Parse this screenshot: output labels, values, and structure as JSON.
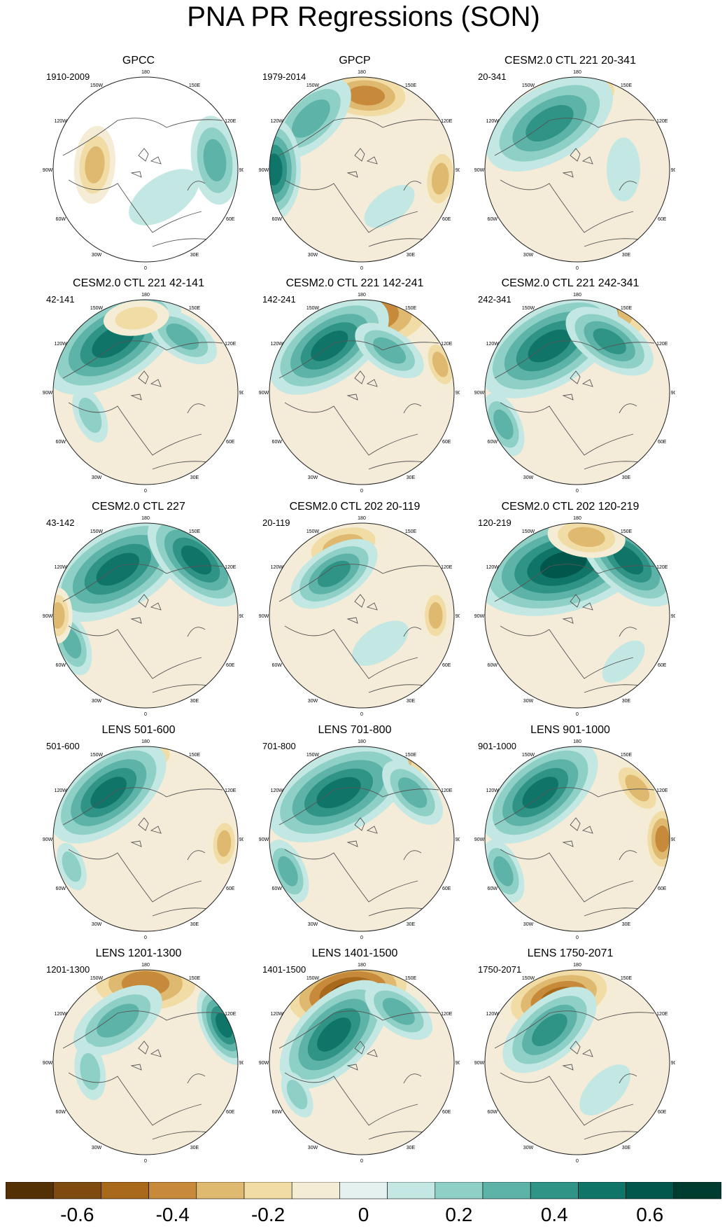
{
  "title": "PNA PR Regressions (SON)",
  "chart_data": {
    "type": "heatmap",
    "title": "PNA PR Regressions (SON)",
    "projection": "north polar stereographic",
    "lon_labels": [
      "180",
      "150E",
      "120E",
      "90E",
      "60E",
      "30E",
      "0",
      "30W",
      "60W",
      "90W",
      "120W",
      "150W"
    ],
    "colorbar": {
      "levels": [
        -0.7,
        -0.6,
        -0.5,
        -0.4,
        -0.3,
        -0.2,
        -0.1,
        0,
        0.1,
        0.2,
        0.3,
        0.4,
        0.5,
        0.6,
        0.7
      ],
      "tick_labels": [
        "-0.6",
        "-0.4",
        "-0.2",
        "0",
        "0.2",
        "0.4",
        "0.6"
      ],
      "tick_values": [
        -0.6,
        -0.4,
        -0.2,
        0,
        0.2,
        0.4,
        0.6
      ],
      "colors": [
        "#543005",
        "#7e4a10",
        "#a9691b",
        "#c78a3a",
        "#dfb96f",
        "#f0dca4",
        "#f5ecd5",
        "#e4f1ef",
        "#c3e7e2",
        "#8ed0c6",
        "#5db3a8",
        "#2f9386",
        "#107569",
        "#01574c",
        "#003c30"
      ]
    },
    "panels": [
      {
        "title": "GPCC",
        "period": "1910-2009"
      },
      {
        "title": "GPCP",
        "period": "1979-2014"
      },
      {
        "title": "CESM2.0 CTL 221 20-341",
        "period": "20-341"
      },
      {
        "title": "CESM2.0 CTL 221 42-141",
        "period": "42-141"
      },
      {
        "title": "CESM2.0 CTL 221 142-241",
        "period": "142-241"
      },
      {
        "title": "CESM2.0 CTL 221 242-341",
        "period": "242-341"
      },
      {
        "title": "CESM2.0 CTL 227",
        "period": "43-142"
      },
      {
        "title": "CESM2.0 CTL 202 20-119",
        "period": "20-119"
      },
      {
        "title": "CESM2.0 CTL 202 120-219",
        "period": "120-219"
      },
      {
        "title": "LENS 501-600",
        "period": "501-600"
      },
      {
        "title": "LENS 701-800",
        "period": "701-800"
      },
      {
        "title": "LENS 901-1000",
        "period": "901-1000"
      },
      {
        "title": "LENS 1201-1300",
        "period": "1201-1300"
      },
      {
        "title": "LENS 1401-1500",
        "period": "1401-1500"
      },
      {
        "title": "LENS 1750-2071",
        "period": "1750-2071"
      }
    ]
  }
}
